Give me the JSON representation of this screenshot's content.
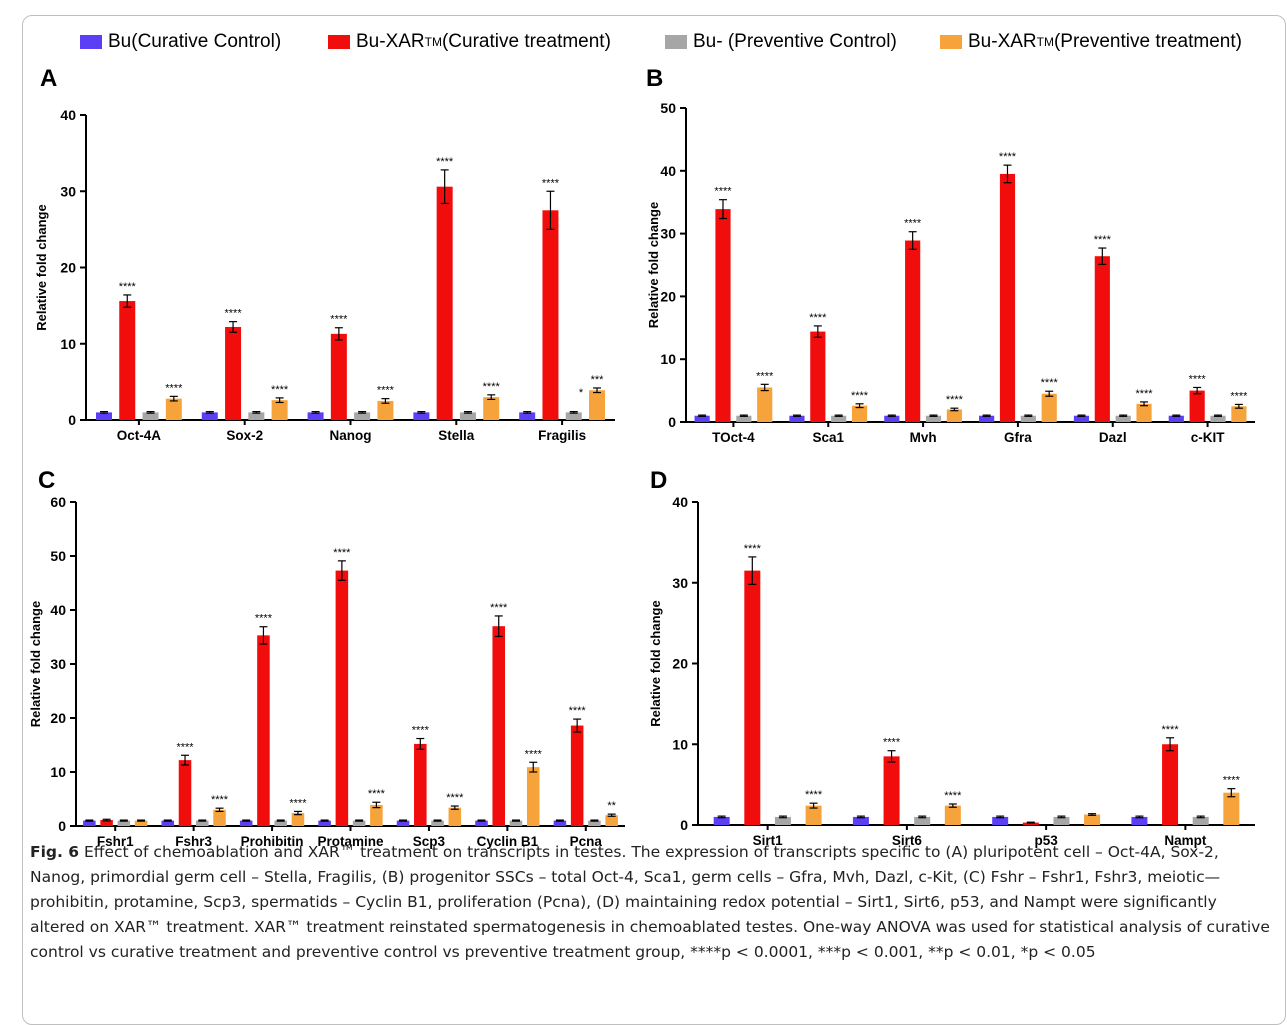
{
  "colors": {
    "curative_control": "#5b3ff5",
    "curative_treatment": "#f20d0d",
    "preventive_control": "#a6a6a6",
    "preventive_treatment": "#f7a33b"
  },
  "legend": {
    "items": [
      {
        "label": "Bu(Curative Control)",
        "sup": ""
      },
      {
        "label": "Bu-XAR",
        "sup": "TM",
        "suffix": "(Curative treatment)"
      },
      {
        "label": "Bu- (Preventive Control)",
        "sup": ""
      },
      {
        "label": "Bu-XAR",
        "sup": "TM",
        "suffix": "(Preventive treatment)"
      }
    ]
  },
  "chart_data": [
    {
      "type": "bar",
      "panel_label": "A",
      "ylabel": "Relative fold change",
      "ylim": [
        0,
        40
      ],
      "yticks": [
        0,
        10,
        20,
        30,
        40
      ],
      "categories": [
        "Oct-4A",
        "Sox-2",
        "Nanog",
        "Stella",
        "Fragilis"
      ],
      "series": [
        {
          "values": [
            1,
            1,
            1,
            1,
            1
          ],
          "errors": [
            0.1,
            0.1,
            0.1,
            0.1,
            0.1
          ]
        },
        {
          "values": [
            15.6,
            12.2,
            11.3,
            30.6,
            27.5
          ],
          "errors": [
            0.8,
            0.7,
            0.8,
            2.2,
            2.5
          ]
        },
        {
          "values": [
            1,
            1,
            1,
            1,
            1
          ],
          "errors": [
            0.1,
            0.1,
            0.1,
            0.1,
            0.1
          ]
        },
        {
          "values": [
            2.8,
            2.6,
            2.5,
            3.0,
            3.9
          ],
          "errors": [
            0.3,
            0.3,
            0.3,
            0.3,
            0.3
          ]
        }
      ],
      "annotations": [
        [
          null,
          "****",
          null,
          "****"
        ],
        [
          null,
          "****",
          null,
          "****"
        ],
        [
          null,
          "****",
          null,
          "****"
        ],
        [
          null,
          "****",
          null,
          "****"
        ],
        [
          null,
          "****",
          null,
          "***\n*"
        ]
      ]
    },
    {
      "type": "bar",
      "panel_label": "B",
      "ylabel": "Relative fold change",
      "ylim": [
        0,
        50
      ],
      "yticks": [
        0,
        10,
        20,
        30,
        40,
        50
      ],
      "categories": [
        "TOct-4",
        "Sca1",
        "Mvh",
        "Gfra",
        "Dazl",
        "c-KIT"
      ],
      "series": [
        {
          "values": [
            1,
            1,
            1,
            1,
            1,
            1
          ],
          "errors": [
            0.1,
            0.1,
            0.1,
            0.1,
            0.1,
            0.1
          ]
        },
        {
          "values": [
            33.9,
            14.4,
            28.9,
            39.5,
            26.4,
            5.0
          ],
          "errors": [
            1.5,
            0.9,
            1.4,
            1.4,
            1.3,
            0.5
          ]
        },
        {
          "values": [
            1,
            1,
            1,
            1,
            1,
            1
          ],
          "errors": [
            0.1,
            0.1,
            0.1,
            0.1,
            0.1,
            0.1
          ]
        },
        {
          "values": [
            5.5,
            2.6,
            2.0,
            4.5,
            2.9,
            2.5
          ],
          "errors": [
            0.5,
            0.3,
            0.2,
            0.4,
            0.3,
            0.3
          ]
        }
      ],
      "annotations": [
        [
          null,
          "****",
          null,
          "****"
        ],
        [
          null,
          "****",
          null,
          "****"
        ],
        [
          null,
          "****",
          null,
          "****"
        ],
        [
          null,
          "****",
          null,
          "****"
        ],
        [
          null,
          "****",
          null,
          "****"
        ],
        [
          null,
          "****",
          null,
          "****"
        ]
      ]
    },
    {
      "type": "bar",
      "panel_label": "C",
      "ylabel": "Relative fold change",
      "ylim": [
        0,
        60
      ],
      "yticks": [
        0,
        10,
        20,
        30,
        40,
        50,
        60
      ],
      "categories": [
        "Fshr1",
        "Fshr3",
        "Prohibitin",
        "Protamine",
        "Scp3",
        "Cyclin B1",
        "Pcna"
      ],
      "series": [
        {
          "values": [
            1,
            1,
            1,
            1,
            1,
            1,
            1
          ],
          "errors": [
            0.1,
            0.1,
            0.1,
            0.1,
            0.1,
            0.1,
            0.1
          ]
        },
        {
          "values": [
            1.1,
            12.2,
            35.3,
            47.3,
            15.2,
            37.0,
            18.6
          ],
          "errors": [
            0.15,
            0.9,
            1.6,
            1.8,
            1.0,
            1.9,
            1.2
          ]
        },
        {
          "values": [
            1,
            1,
            1,
            1,
            1,
            1,
            1
          ],
          "errors": [
            0.1,
            0.1,
            0.1,
            0.1,
            0.1,
            0.1,
            0.1
          ]
        },
        {
          "values": [
            1.0,
            3.0,
            2.4,
            3.9,
            3.4,
            10.9,
            2.0
          ],
          "errors": [
            0.1,
            0.3,
            0.3,
            0.5,
            0.3,
            0.9,
            0.2
          ]
        }
      ],
      "annotations": [
        [
          null,
          null,
          null,
          null
        ],
        [
          null,
          "****",
          null,
          "****"
        ],
        [
          null,
          "****",
          null,
          "****"
        ],
        [
          null,
          "****",
          null,
          "****"
        ],
        [
          null,
          "****",
          null,
          "****"
        ],
        [
          null,
          "****",
          null,
          "****"
        ],
        [
          null,
          "****",
          null,
          "**"
        ]
      ]
    },
    {
      "type": "bar",
      "panel_label": "D",
      "ylabel": "Relative fold change",
      "ylim": [
        0,
        40
      ],
      "yticks": [
        0,
        10,
        20,
        30,
        40
      ],
      "categories": [
        "Sirt1",
        "Sirt6",
        "p53",
        "Nampt"
      ],
      "series": [
        {
          "values": [
            1,
            1,
            1,
            1
          ],
          "errors": [
            0.1,
            0.1,
            0.1,
            0.1
          ]
        },
        {
          "values": [
            31.5,
            8.5,
            0.3,
            10.0
          ],
          "errors": [
            1.7,
            0.7,
            0.05,
            0.8
          ]
        },
        {
          "values": [
            1,
            1,
            1,
            1
          ],
          "errors": [
            0.1,
            0.1,
            0.1,
            0.1
          ]
        },
        {
          "values": [
            2.4,
            2.4,
            1.3,
            4.0
          ],
          "errors": [
            0.3,
            0.2,
            0.1,
            0.5
          ]
        }
      ],
      "annotations": [
        [
          null,
          "****",
          null,
          "****"
        ],
        [
          null,
          "****",
          null,
          "****"
        ],
        [
          null,
          null,
          null,
          null
        ],
        [
          null,
          "****",
          null,
          "****"
        ]
      ]
    }
  ],
  "caption": {
    "fig": "Fig. 6",
    "text": "Effect of chemoablation and XAR™ treatment on transcripts in testes. The expression of transcripts specific to (A) pluripotent cell – Oct-4A, Sox-2, Nanog, primordial germ cell – Stella, Fragilis, (B) progenitor SSCs – total Oct-4, Sca1, germ cells – Gfra, Mvh, Dazl, c-Kit, (C) Fshr – Fshr1, Fshr3, meiotic—prohibitin, protamine, Scp3, spermatids – Cyclin B1, proliferation (Pcna), (D) maintaining redox potential – Sirt1, Sirt6, p53, and Nampt were significantly altered on XAR™ treatment. XAR™ treatment reinstated spermatogenesis in chemoablated testes. One-way ANOVA was used for statistical analysis of curative control vs curative treatment and preventive control vs preventive treatment group, ****p < 0.0001, ***p < 0.001, **p < 0.01, *p < 0.05"
  }
}
